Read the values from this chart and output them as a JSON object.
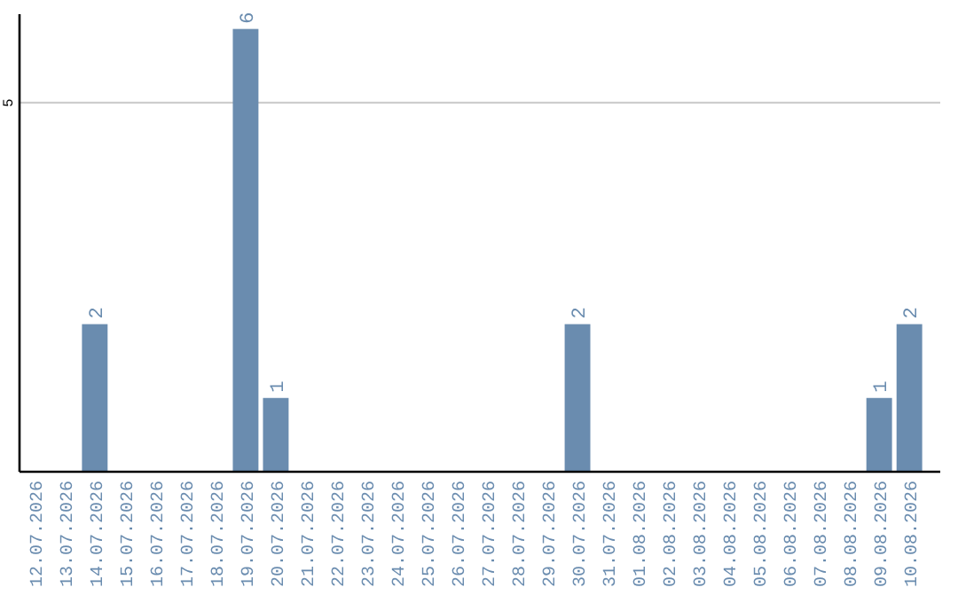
{
  "chart_data": {
    "type": "bar",
    "categories": [
      "12.07.2026",
      "13.07.2026",
      "14.07.2026",
      "15.07.2026",
      "16.07.2026",
      "17.07.2026",
      "18.07.2026",
      "19.07.2026",
      "20.07.2026",
      "21.07.2026",
      "22.07.2026",
      "23.07.2026",
      "24.07.2026",
      "25.07.2026",
      "26.07.2026",
      "27.07.2026",
      "28.07.2026",
      "29.07.2026",
      "30.07.2026",
      "31.07.2026",
      "01.08.2026",
      "02.08.2026",
      "03.08.2026",
      "04.08.2026",
      "05.08.2026",
      "06.08.2026",
      "07.08.2026",
      "08.08.2026",
      "09.08.2026",
      "10.08.2026"
    ],
    "values": [
      0,
      0,
      2,
      0,
      0,
      0,
      0,
      6,
      1,
      0,
      0,
      0,
      0,
      0,
      0,
      0,
      0,
      0,
      2,
      0,
      0,
      0,
      0,
      0,
      0,
      0,
      0,
      0,
      1,
      2
    ],
    "value_labels": [
      null,
      null,
      "2",
      null,
      null,
      null,
      null,
      "6",
      "1",
      null,
      null,
      null,
      null,
      null,
      null,
      null,
      null,
      null,
      "2",
      null,
      null,
      null,
      null,
      null,
      null,
      null,
      null,
      null,
      "1",
      "2"
    ],
    "color": "#6a8caf",
    "ylim": [
      0,
      6.2
    ],
    "yticks": [
      5
    ],
    "grid": "y"
  }
}
